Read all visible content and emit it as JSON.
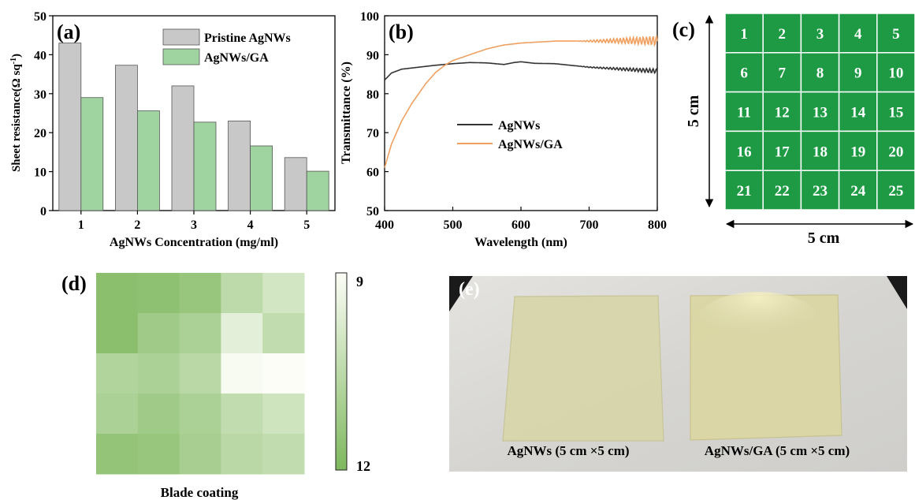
{
  "panels": {
    "a": {
      "label": "(a)",
      "chart_data": {
        "type": "bar",
        "categories": [
          "1",
          "2",
          "3",
          "4",
          "5"
        ],
        "series": [
          {
            "name": "Pristine AgNWs",
            "values": [
              43,
              37.3,
              32,
              23,
              13.6
            ],
            "color": "#c8c8c8"
          },
          {
            "name": "AgNWs/GA",
            "values": [
              29,
              25.6,
              22.7,
              16.6,
              10.1
            ],
            "color": "#9fd39f"
          }
        ],
        "xlabel": "AgNWs Concentration (mg/ml)",
        "ylabel_main": "Sheet resistance(Ω sq",
        "ylabel_sup": "-1",
        "ylabel_close": ")",
        "ylim": [
          0,
          50
        ],
        "yticks": [
          "0",
          "10",
          "20",
          "30",
          "40",
          "50"
        ],
        "legend_position": "top-right"
      }
    },
    "b": {
      "label": "(b)",
      "chart_data": {
        "type": "line",
        "series": [
          {
            "name": "AgNWs",
            "color": "#333333",
            "x": [
              400,
              410,
              425,
              450,
              475,
              500,
              525,
              550,
              575,
              590,
              600,
              620,
              650,
              700,
              750,
              800
            ],
            "y": [
              83.5,
              85.3,
              86.3,
              86.8,
              87.3,
              87.7,
              88.0,
              87.9,
              87.5,
              88.0,
              88.2,
              87.8,
              87.7,
              86.8,
              86.3,
              85.8
            ]
          },
          {
            "name": "AgNWs/GA",
            "color": "#f0a060",
            "x": [
              400,
              410,
              425,
              440,
              450,
              460,
              475,
              490,
              500,
              525,
              550,
              575,
              600,
              650,
              700,
              750,
              800
            ],
            "y": [
              61,
              67,
              73,
              77.5,
              80,
              82.5,
              85.5,
              87.5,
              88.5,
              90,
              91.5,
              92.5,
              93,
              93.5,
              93.5,
              93.6,
              93.6
            ]
          }
        ],
        "xlabel": "Wavelength (nm)",
        "ylabel": "Transmittance (%)",
        "xlim": [
          400,
          800
        ],
        "ylim": [
          50,
          100
        ],
        "xticks": [
          "400",
          "500",
          "600",
          "700",
          "800"
        ],
        "yticks": [
          "50",
          "60",
          "70",
          "80",
          "90",
          "100"
        ],
        "legend_position": "center-right"
      }
    },
    "c": {
      "label": "(c)",
      "cells": [
        "1",
        "2",
        "3",
        "4",
        "5",
        "6",
        "7",
        "8",
        "9",
        "10",
        "11",
        "12",
        "13",
        "14",
        "15",
        "16",
        "17",
        "18",
        "19",
        "20",
        "21",
        "22",
        "23",
        "24",
        "25"
      ],
      "side_label": "5 cm",
      "bottom_label": "5 cm",
      "grid_color": "#1e9a44"
    },
    "d": {
      "label": "(d)",
      "chart_data": {
        "type": "heatmap",
        "rows": 5,
        "cols": 5,
        "values": [
          [
            11.7,
            11.6,
            11.4,
            10.5,
            10.0
          ],
          [
            11.7,
            11.2,
            10.9,
            9.6,
            10.4
          ],
          [
            10.8,
            10.9,
            10.6,
            9.1,
            9.0
          ],
          [
            10.9,
            11.2,
            10.9,
            10.4,
            10.1
          ],
          [
            11.5,
            11.4,
            11.0,
            10.6,
            10.4
          ]
        ],
        "scale_min": 9,
        "scale_max": 12,
        "color_low_value": "#fcfdf6",
        "color_high_value": "#7eb85e",
        "colorbar_top_label": "9",
        "colorbar_bottom_label": "12",
        "xlabel": "Blade coating"
      }
    },
    "e": {
      "label": "(e)",
      "left_caption": "AgNWs (5 cm ×5 cm)",
      "right_caption": "AgNWs/GA (5 cm ×5 cm)"
    }
  }
}
